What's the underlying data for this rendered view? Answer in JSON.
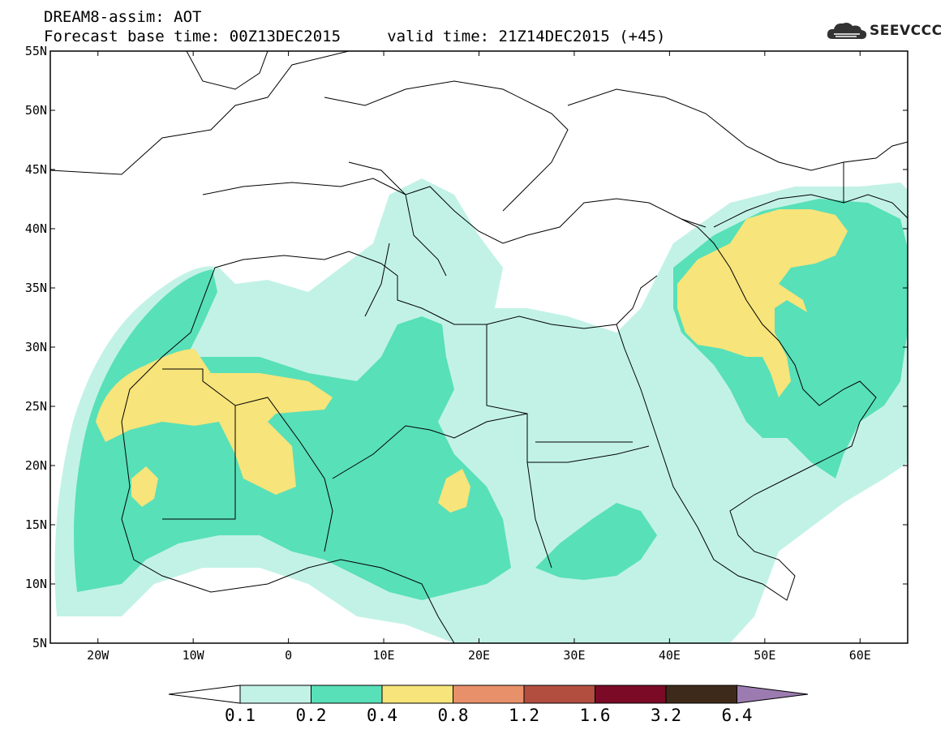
{
  "header": {
    "line1": "DREAM8-assim: AOT",
    "line2": "Forecast base time: 00Z13DEC2015     valid time: 21Z14DEC2015 (+45)"
  },
  "logo": {
    "text": "SEEVCCC",
    "icon": "cloud-icon"
  },
  "map": {
    "lon_range": [
      -25,
      65
    ],
    "lat_range": [
      5,
      55
    ],
    "lat_labels": [
      "55N",
      "50N",
      "45N",
      "40N",
      "35N",
      "30N",
      "25N",
      "20N",
      "15N",
      "10N",
      "5N"
    ],
    "lon_labels": [
      "20W",
      "10W",
      "0",
      "10E",
      "20E",
      "30E",
      "40E",
      "50E",
      "60E"
    ],
    "field": "Aerosol optical thickness (dust)"
  },
  "colorbar": {
    "labels": [
      "0.1",
      "0.2",
      "0.4",
      "0.8",
      "1.2",
      "1.6",
      "3.2",
      "6.4"
    ],
    "colors": [
      "#ffffff",
      "#c2f2e6",
      "#58e0b8",
      "#f7e47a",
      "#e8906a",
      "#b24e40",
      "#7a0a26",
      "#3e2a1a",
      "#9c7cb0"
    ]
  }
}
